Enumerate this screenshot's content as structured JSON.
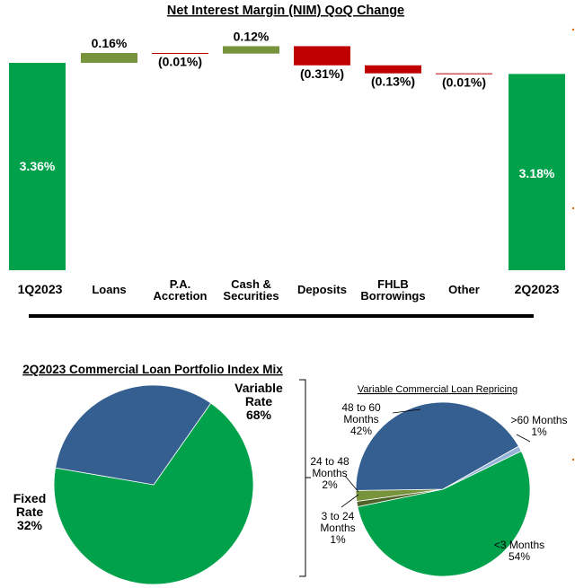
{
  "chart_data": [
    {
      "type": "waterfall",
      "title": "Net Interest Margin (NIM) QoQ Change",
      "unit": "%",
      "start": {
        "label": "1Q2023",
        "value": 3.36,
        "display": "3.36%"
      },
      "end": {
        "label": "2Q2023",
        "value": 3.18,
        "display": "3.18%"
      },
      "steps": [
        {
          "label": "Loans",
          "value": 0.16,
          "display": "0.16%"
        },
        {
          "label": "P.A. Accretion",
          "value": -0.01,
          "display": "(0.01%)"
        },
        {
          "label": "Cash & Securities",
          "value": 0.12,
          "display": "0.12%"
        },
        {
          "label": "Deposits",
          "value": -0.31,
          "display": "(0.31%)"
        },
        {
          "label": "FHLB Borrowings",
          "value": -0.13,
          "display": "(0.13%)"
        },
        {
          "label": "Other",
          "value": -0.01,
          "display": "(0.01%)"
        }
      ],
      "colors": {
        "total": "#00a14b",
        "increase": "#77933c",
        "decrease": "#c00000"
      }
    },
    {
      "type": "pie",
      "title": "2Q2023 Commercial Loan Portfolio Index Mix",
      "slices": [
        {
          "label": "Variable Rate",
          "line1": "Variable",
          "line2": "Rate",
          "value": 68,
          "display": "68%",
          "color": "#00a14b"
        },
        {
          "label": "Fixed Rate",
          "line1": "Fixed",
          "line2": "Rate",
          "value": 32,
          "display": "32%",
          "color": "#365f91"
        }
      ]
    },
    {
      "type": "pie",
      "title": "Variable Commercial Loan Repricing",
      "slices": [
        {
          "label": "<3 Months",
          "line1": "<3 Months",
          "line2": "",
          "value": 54,
          "display": "54%",
          "color": "#00a14b"
        },
        {
          "label": "3 to 24 Months",
          "line1": "3 to 24",
          "line2": "Months",
          "value": 1,
          "display": "1%",
          "color": "#4f6228"
        },
        {
          "label": "24 to 48 Months",
          "line1": "24 to 48",
          "line2": "Months",
          "value": 2,
          "display": "2%",
          "color": "#77933c"
        },
        {
          "label": "48 to 60 Months",
          "line1": "48 to 60",
          "line2": "Months",
          "value": 42,
          "display": "42%",
          "color": "#365f91"
        },
        {
          "label": ">60 Months",
          "line1": ">60 Months",
          "line2": "",
          "value": 1,
          "display": "1%",
          "color": "#95b3d7"
        }
      ]
    }
  ]
}
